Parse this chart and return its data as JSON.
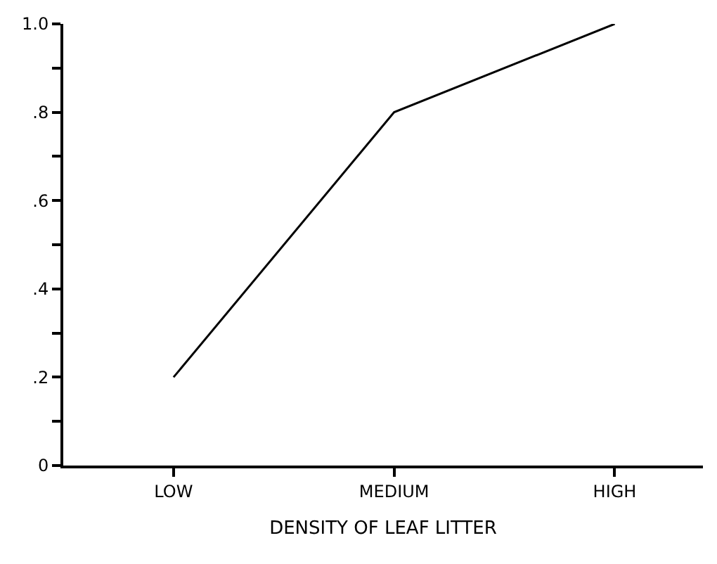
{
  "chart_data": {
    "type": "line",
    "xlabel": "DENSITY OF LEAF LITTER",
    "categories": [
      "LOW",
      "MEDIUM",
      "HIGH"
    ],
    "series": [
      {
        "color": "#000000",
        "values": [
          0.2,
          0.8,
          1.0
        ]
      }
    ],
    "ylim": [
      0,
      1.0
    ],
    "yticks": [
      {
        "value": 0,
        "label": "0"
      },
      {
        "value": 0.1,
        "label": null
      },
      {
        "value": 0.2,
        "label": ".2"
      },
      {
        "value": 0.3,
        "label": null
      },
      {
        "value": 0.4,
        "label": ".4"
      },
      {
        "value": 0.5,
        "label": null
      },
      {
        "value": 0.6,
        "label": ".6"
      },
      {
        "value": 0.7,
        "label": null
      },
      {
        "value": 0.8,
        "label": ".8"
      },
      {
        "value": 0.9,
        "label": null
      },
      {
        "value": 1.0,
        "label": "1.0"
      }
    ],
    "marker": "none",
    "line_style": "solid"
  }
}
